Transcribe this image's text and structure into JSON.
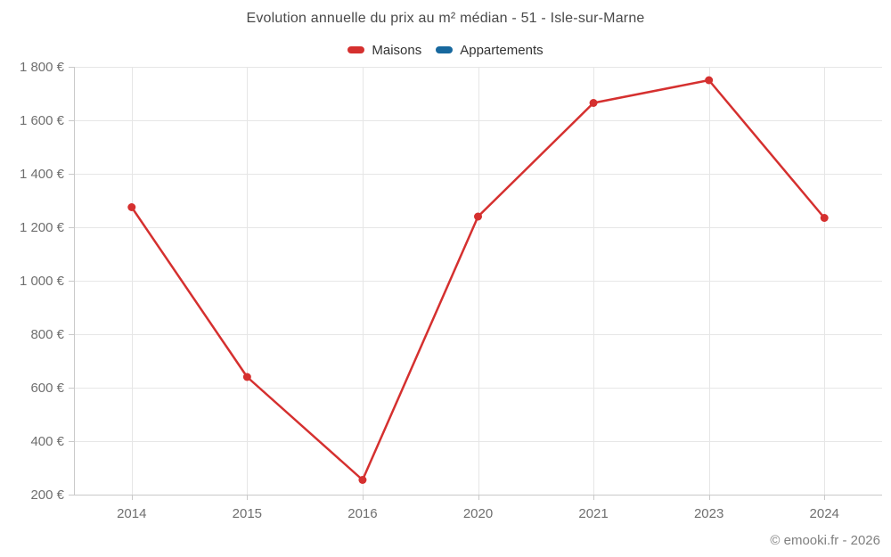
{
  "chart_data": {
    "type": "line",
    "title": "Evolution annuelle du prix au m² médian - 51 - Isle-sur-Marne",
    "categories": [
      "2014",
      "2015",
      "2016",
      "2020",
      "2021",
      "2023",
      "2024"
    ],
    "series": [
      {
        "name": "Maisons",
        "color": "#d5302f",
        "values": [
          1275,
          640,
          255,
          1240,
          1665,
          1750,
          1235
        ]
      },
      {
        "name": "Appartements",
        "color": "#17689e",
        "values": []
      }
    ],
    "ylim": [
      200,
      1800
    ],
    "ytick_step": 200,
    "ytick_suffix": " €",
    "yticks": [
      "200 €",
      "400 €",
      "600 €",
      "800 €",
      "1 000 €",
      "1 200 €",
      "1 400 €",
      "1 600 €",
      "1 800 €"
    ],
    "grid": true,
    "legend_position": "top",
    "colors": {
      "grid": "#e6e6e6",
      "axis": "#c9c9c9",
      "tick_label": "#6f6f6f",
      "title": "#4a4a4a",
      "legend_text": "#333333"
    }
  },
  "footer": {
    "copyright": "© emooki.fr - 2026"
  }
}
